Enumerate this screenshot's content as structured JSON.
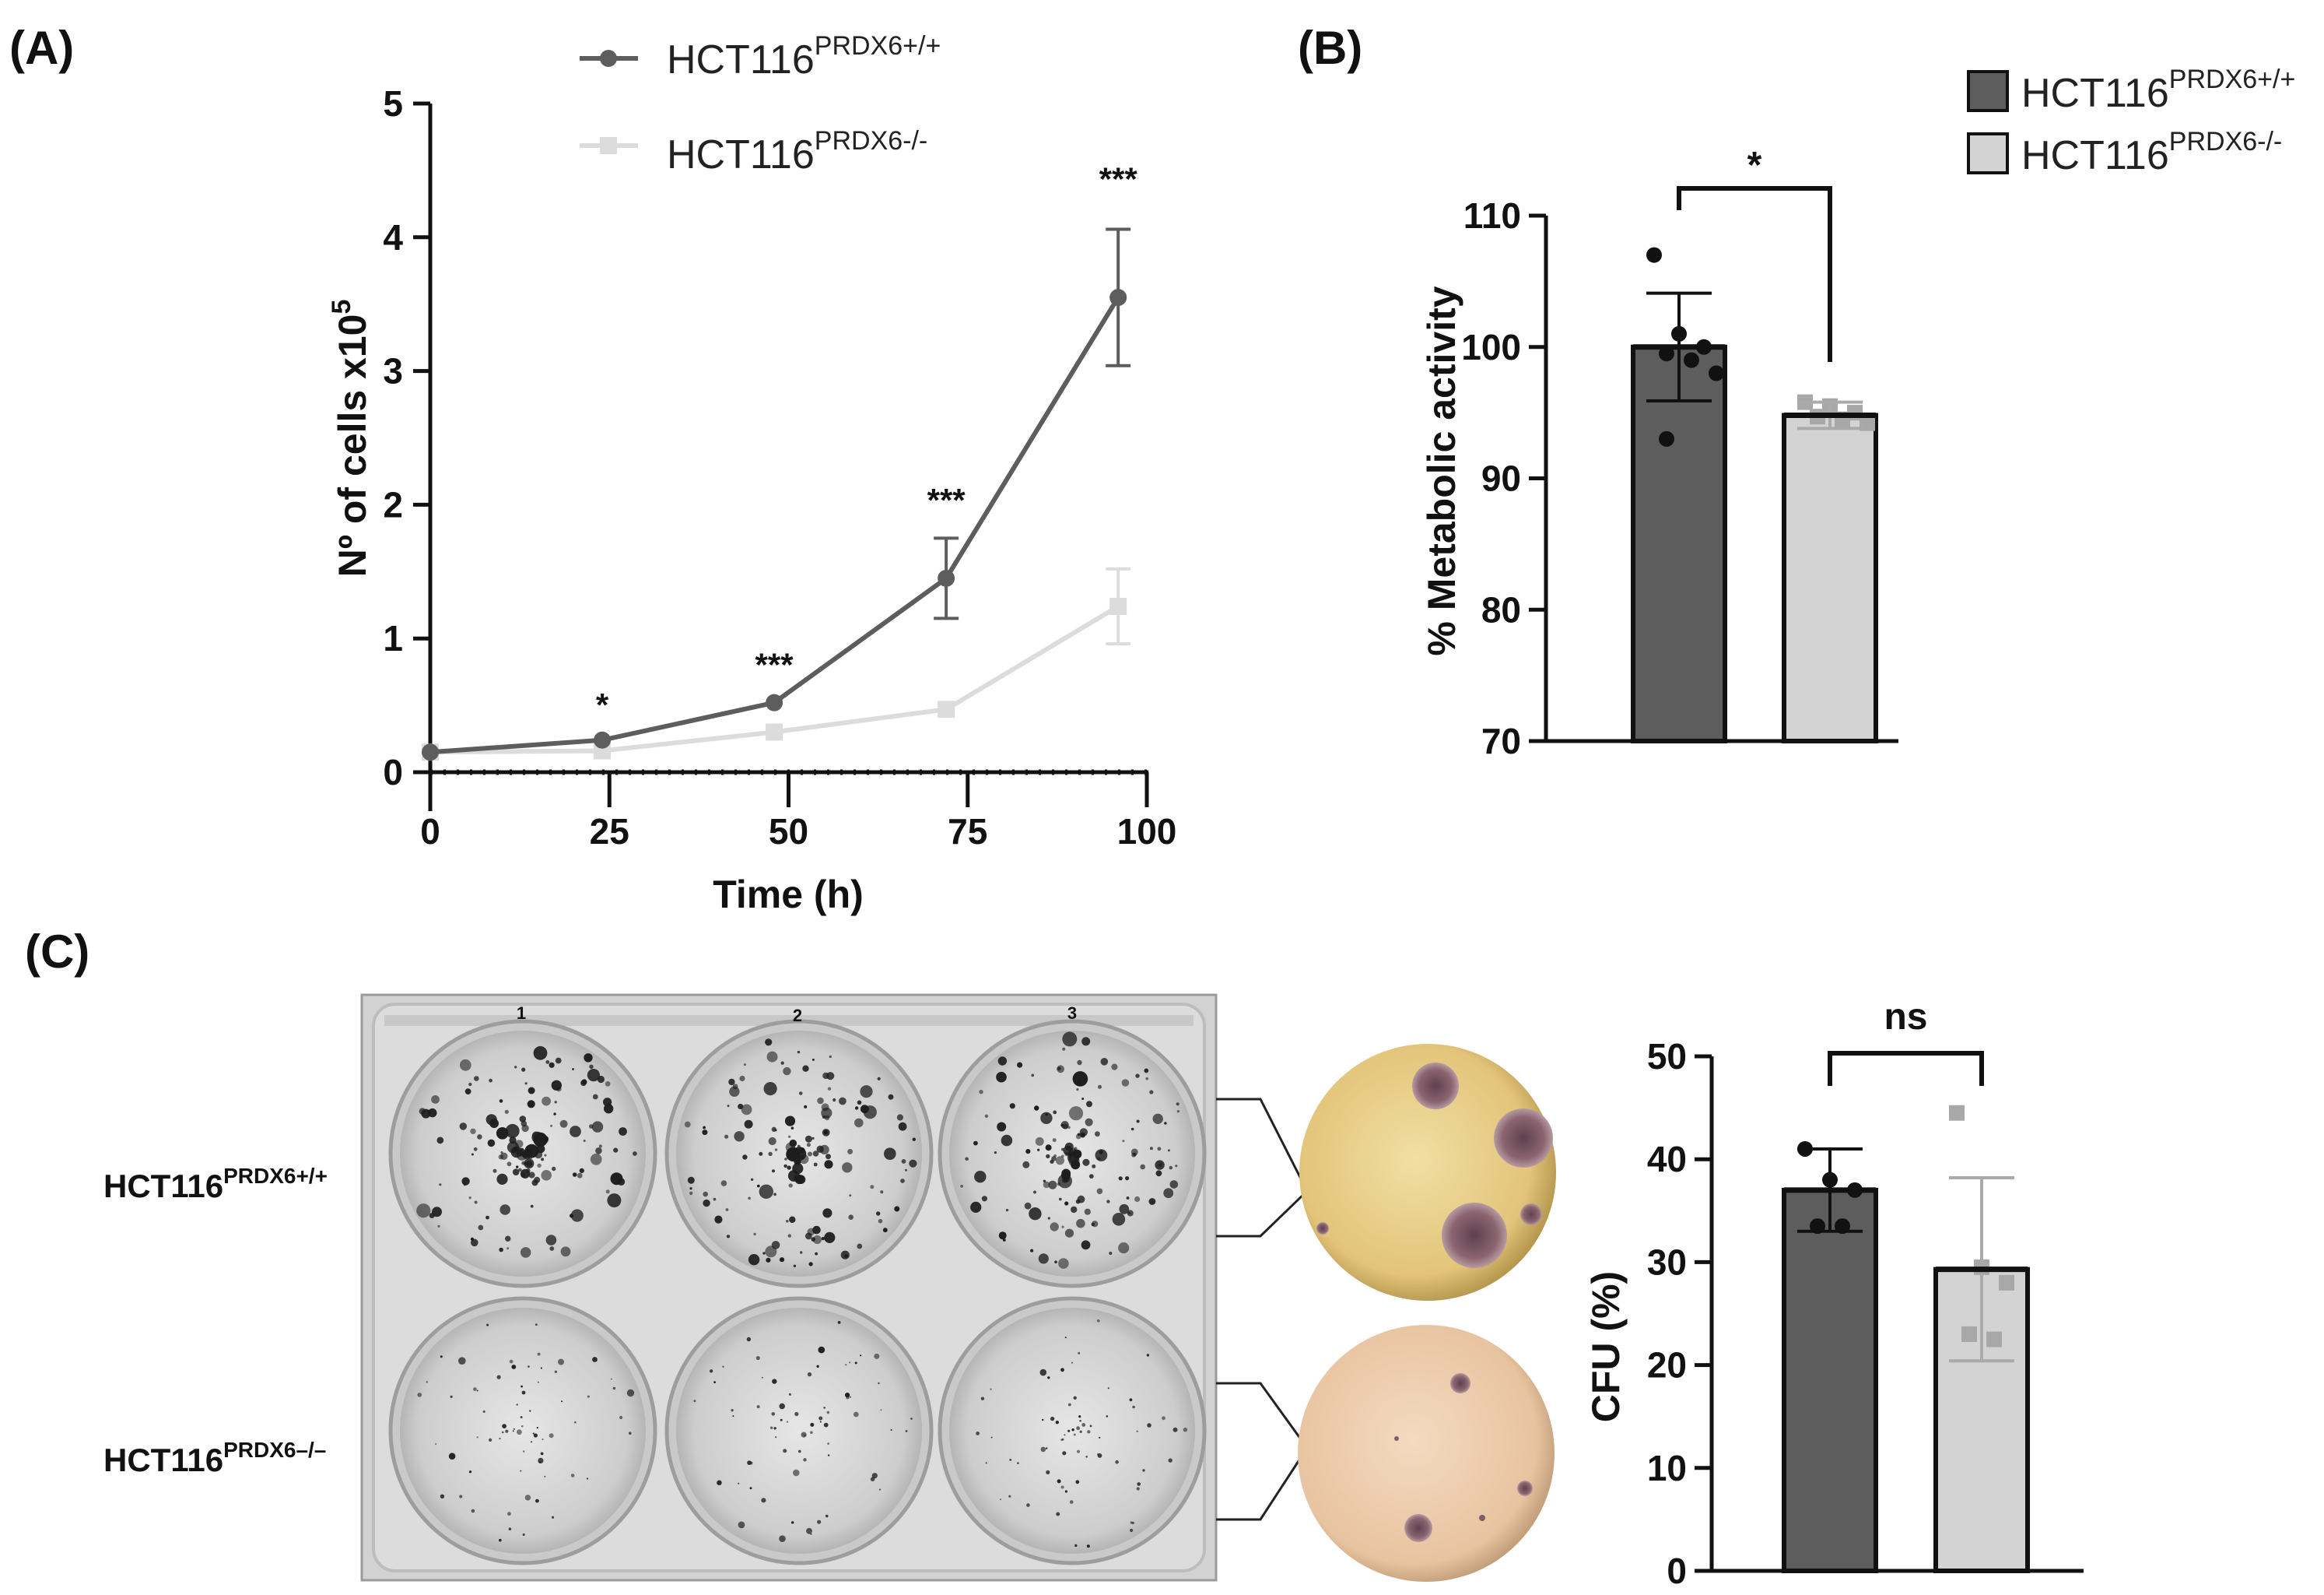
{
  "panels": {
    "a": {
      "letter": "(A)"
    },
    "b": {
      "letter": "(B)"
    },
    "c": {
      "letter": "(C)"
    }
  },
  "colors": {
    "dark": "#5d5d5d",
    "light": "#d3d3d3",
    "light_line": "#dcdcdc",
    "axis": "#111111"
  },
  "legend_a": [
    {
      "base": "HCT116",
      "sup": "PRDX6+/+",
      "color": "#5d5d5d",
      "marker": "circle"
    },
    {
      "base": "HCT116",
      "sup": "PRDX6-/-",
      "color": "#dcdcdc",
      "marker": "square"
    }
  ],
  "legend_b": [
    {
      "base": "HCT116",
      "sup": "PRDX6+/+",
      "color": "#5d5d5d"
    },
    {
      "base": "HCT116",
      "sup": "PRDX6-/-",
      "color": "#d3d3d3"
    }
  ],
  "row_labels": [
    {
      "base": "HCT116",
      "sup": "PRDX6+/+"
    },
    {
      "base": "HCT116",
      "sup": "PRDX6–/–"
    }
  ],
  "plate": {
    "well_numbers": [
      "1",
      "2",
      "3"
    ]
  },
  "chart_data": [
    {
      "id": "A",
      "type": "line",
      "xlabel": "Time (h)",
      "ylabel_base": "Nº of cells x10",
      "ylabel_sup": "5",
      "xlim": [
        0,
        100
      ],
      "ylim": [
        0,
        5
      ],
      "xticks": [
        0,
        25,
        50,
        75,
        100
      ],
      "yticks": [
        0,
        1,
        2,
        3,
        4,
        5
      ],
      "series": [
        {
          "name": "HCT116 PRDX6+/+",
          "x": [
            0,
            24,
            48,
            72,
            96
          ],
          "values": [
            0.15,
            0.24,
            0.52,
            1.45,
            3.55
          ],
          "err": [
            0.01,
            0.02,
            0.03,
            0.3,
            0.51
          ]
        },
        {
          "name": "HCT116 PRDX6-/-",
          "x": [
            0,
            24,
            48,
            72,
            96
          ],
          "values": [
            0.15,
            0.16,
            0.3,
            0.47,
            1.24
          ],
          "err": [
            0.01,
            0.01,
            0.02,
            0.03,
            0.28
          ]
        }
      ],
      "annotations": [
        {
          "x": 24,
          "text": "*",
          "y": 0.42
        },
        {
          "x": 48,
          "text": "***",
          "y": 0.72
        },
        {
          "x": 72,
          "text": "***",
          "y": 1.95
        },
        {
          "x": 96,
          "text": "***",
          "y": 4.35
        }
      ]
    },
    {
      "id": "B",
      "type": "bar",
      "ylabel": "% Metabolic activity",
      "ylim": [
        70,
        110
      ],
      "yticks": [
        70,
        80,
        90,
        100,
        110
      ],
      "categories": [
        "HCT116 PRDX6+/+",
        "HCT116 PRDX6-/-"
      ],
      "values": [
        100,
        94.8
      ],
      "err": [
        4.1,
        1.0
      ],
      "points": [
        [
          107,
          101,
          100,
          99.5,
          99,
          98,
          93
        ],
        [
          95.8,
          95.5,
          95,
          94.7,
          94.5,
          94.2
        ]
      ],
      "significance": "*"
    },
    {
      "id": "C",
      "type": "bar",
      "ylabel": "CFU (%)",
      "ylim": [
        0,
        50
      ],
      "yticks": [
        0,
        10,
        20,
        30,
        40,
        50
      ],
      "categories": [
        "HCT116 PRDX6+/+",
        "HCT116 PRDX6-/-"
      ],
      "values": [
        37,
        29.3
      ],
      "err": [
        4,
        8.9
      ],
      "points": [
        [
          41,
          38,
          37,
          33.5,
          33.5
        ],
        [
          44.5,
          29.5,
          28,
          23,
          22.5
        ]
      ],
      "significance": "ns"
    }
  ]
}
